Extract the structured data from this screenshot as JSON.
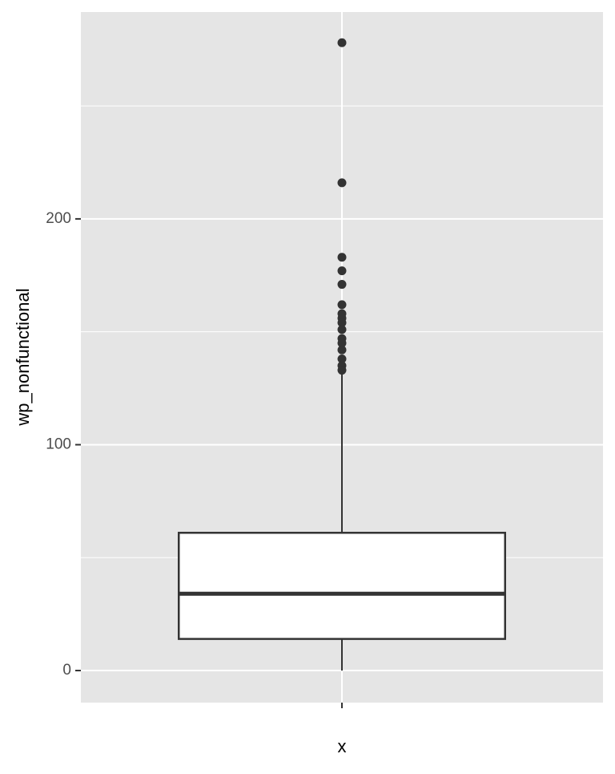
{
  "chart_data": {
    "type": "box",
    "x_label": "x",
    "y_label": "wp_nonfunctional",
    "categories": [
      null
    ],
    "boxes": [
      {
        "whisker_low": 0,
        "q1": 14,
        "median": 34,
        "q3": 61,
        "whisker_high": 133,
        "outliers": [
          278,
          216,
          183,
          177,
          171,
          162,
          158,
          156,
          154,
          151,
          147,
          145,
          142,
          138,
          135,
          133
        ]
      }
    ],
    "ylim": [
      -14.2,
      291.6
    ],
    "yticks": [
      0,
      100,
      200
    ],
    "minor_yticks": [
      50,
      150,
      250
    ],
    "grid": true,
    "panel_color": "#e5e5e5",
    "fill": "#ffffff",
    "color": "#333333"
  }
}
